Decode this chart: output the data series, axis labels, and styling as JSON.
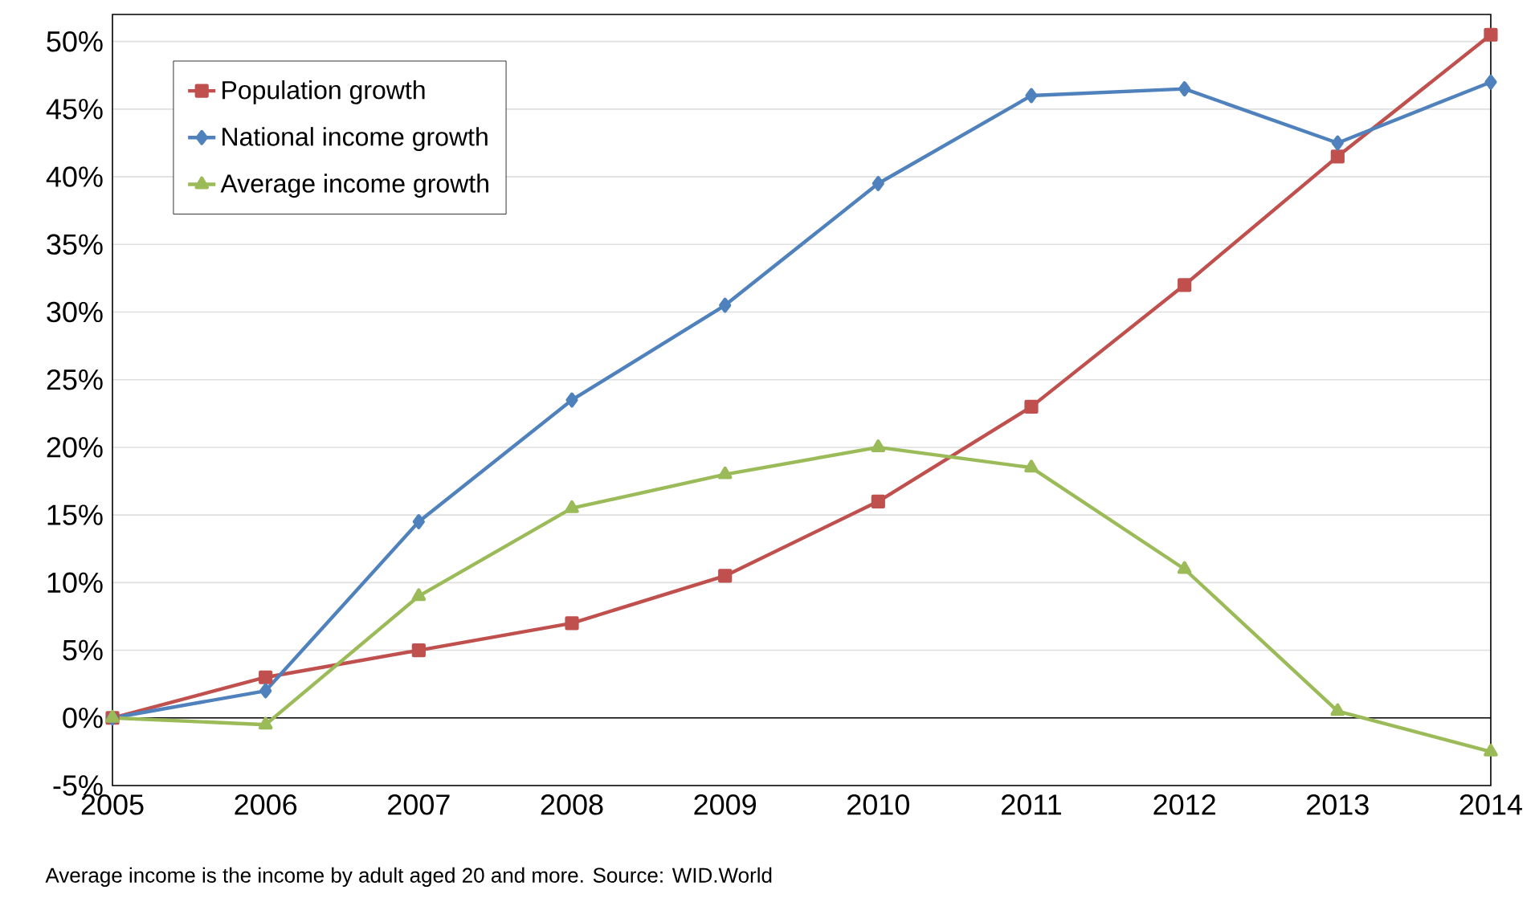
{
  "chart_data": {
    "type": "line",
    "x": [
      2005,
      2006,
      2007,
      2008,
      2009,
      2010,
      2011,
      2012,
      2013,
      2014
    ],
    "xlim": [
      2005,
      2014
    ],
    "xticks": [
      2005,
      2006,
      2007,
      2008,
      2009,
      2010,
      2011,
      2012,
      2013,
      2014
    ],
    "ylim": [
      -5,
      52
    ],
    "yticks": [
      {
        "value": -5,
        "label": "-5%"
      },
      {
        "value": 0,
        "label": "0%"
      },
      {
        "value": 5,
        "label": "5%"
      },
      {
        "value": 10,
        "label": "10%"
      },
      {
        "value": 15,
        "label": "15%"
      },
      {
        "value": 20,
        "label": "20%"
      },
      {
        "value": 25,
        "label": "25%"
      },
      {
        "value": 30,
        "label": "30%"
      },
      {
        "value": 35,
        "label": "35%"
      },
      {
        "value": 40,
        "label": "40%"
      },
      {
        "value": 45,
        "label": "45%"
      },
      {
        "value": 50,
        "label": "50%"
      }
    ],
    "grid": "y",
    "legend": "top left",
    "line_style": "solid",
    "ref_lines": [
      {
        "axis": "y",
        "value": 0,
        "color": "#000000"
      }
    ],
    "series": [
      {
        "name": "Population growth",
        "color": "#c0504d",
        "marker": "square",
        "values": [
          0,
          3,
          5,
          7,
          10.5,
          16,
          23,
          32,
          41.5,
          50.5
        ]
      },
      {
        "name": "National income growth",
        "color": "#4f81bd",
        "marker": "diamond",
        "values": [
          0,
          2,
          14.5,
          23.5,
          30.5,
          39.5,
          46,
          46.5,
          42.5,
          47
        ]
      },
      {
        "name": "Average income growth",
        "color": "#9bbb59",
        "marker": "triangle",
        "values": [
          0,
          -0.5,
          9,
          15.5,
          18,
          20,
          18.5,
          11,
          0.5,
          -2.5
        ]
      }
    ],
    "annotations": [
      "Average income is the income by adult aged 20 and more. Source: WID.World"
    ]
  }
}
